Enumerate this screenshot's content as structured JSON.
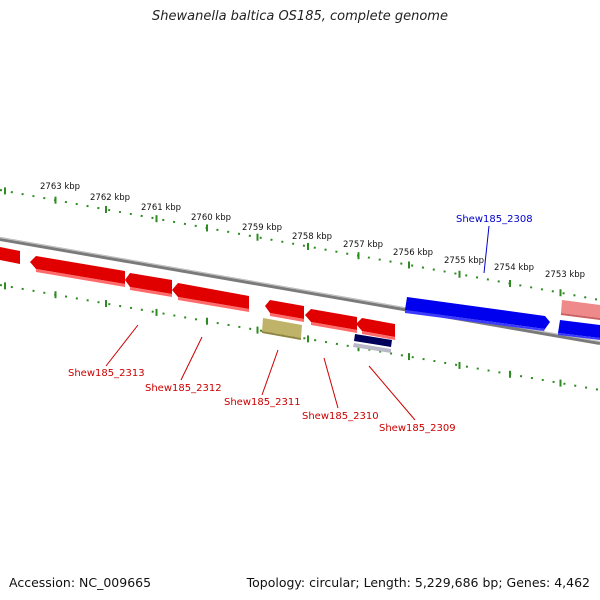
{
  "title": "Shewanella baltica OS185, complete genome",
  "accession": "Accession: NC_009665",
  "summary": "Topology: circular; Length: 5,229,686 bp; Genes: 4,462",
  "colors": {
    "backbone": "#808080",
    "tick": "#2e8b22",
    "forward_gene": "#0000ee",
    "reverse_gene": "#e00000",
    "forward_pale": "#ee8a8a",
    "olive_feature": "#bfb36a",
    "navy_feature": "#00005a"
  },
  "scale_labels": [
    "2763 kbp",
    "2762 kbp",
    "2761 kbp",
    "2760 kbp",
    "2759 kbp",
    "2758 kbp",
    "2757 kbp",
    "2756 kbp",
    "2755 kbp",
    "2754 kbp",
    "2753 kbp"
  ],
  "gene_labels": [
    {
      "text": "Shew185_2308",
      "color": "#0000cc"
    },
    {
      "text": "Shew185_2313",
      "color": "#cc0000"
    },
    {
      "text": "Shew185_2312",
      "color": "#cc0000"
    },
    {
      "text": "Shew185_2311",
      "color": "#cc0000"
    },
    {
      "text": "Shew185_2310",
      "color": "#cc0000"
    },
    {
      "text": "Shew185_2309",
      "color": "#cc0000"
    }
  ]
}
